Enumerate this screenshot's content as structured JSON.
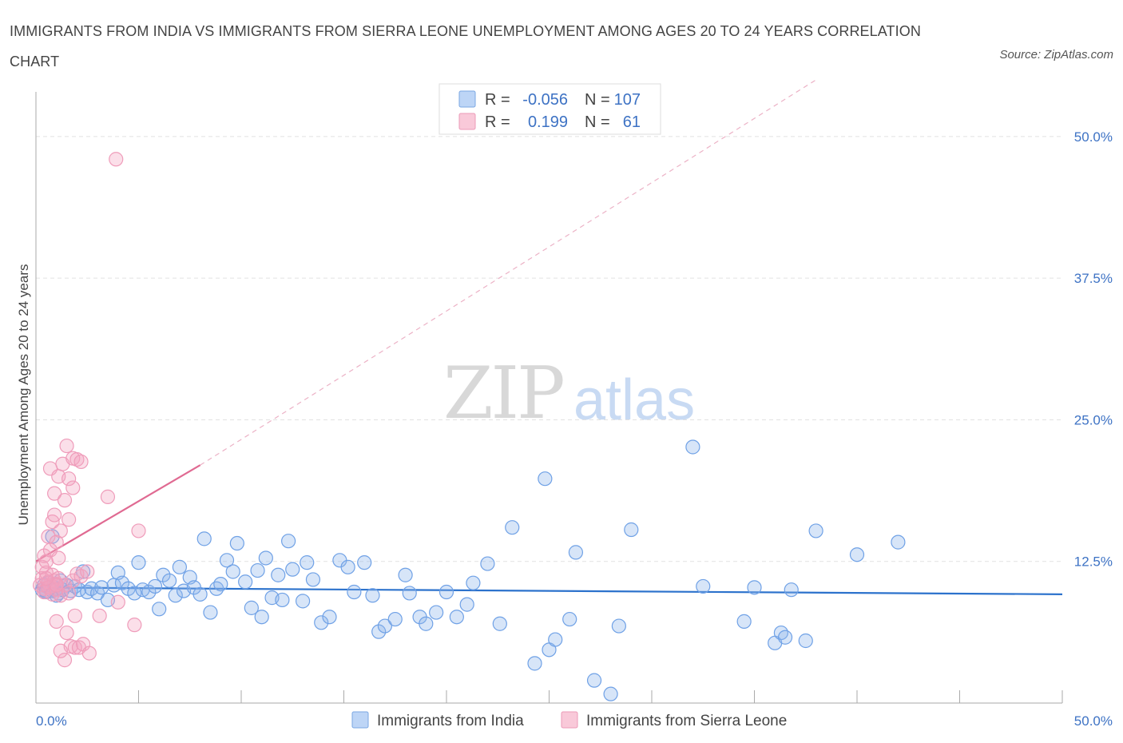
{
  "chart_data": {
    "type": "scatter",
    "title": "IMMIGRANTS FROM INDIA VS IMMIGRANTS FROM SIERRA LEONE UNEMPLOYMENT AMONG AGES 20 TO 24 YEARS CORRELATION CHART",
    "source": "Source: ZipAtlas.com",
    "ylabel": "Unemployment Among Ages 20 to 24 years",
    "xlim": [
      0,
      50
    ],
    "ylim": [
      0,
      55
    ],
    "y_ticks": [
      12.5,
      25.0,
      37.5,
      50.0
    ],
    "y_tick_labels": [
      "12.5%",
      "25.0%",
      "37.5%",
      "50.0%"
    ],
    "x_tick_labels": [
      "0.0%",
      "50.0%"
    ],
    "grid": true,
    "watermark": "ZIPatlas",
    "legend": {
      "position": "top-center",
      "entries": [
        {
          "r_label": "R =",
          "r_value": "-0.056",
          "n_label": "N =",
          "n_value": "107"
        },
        {
          "r_label": "R =",
          "r_value": "0.199",
          "n_label": "N =",
          "n_value": "61"
        }
      ]
    },
    "series": [
      {
        "name": "Immigrants from India",
        "color": "#6fa1e6",
        "trend_color": "#2c72cc",
        "trend": {
          "x": [
            0,
            50
          ],
          "y": [
            10.2,
            9.6
          ]
        },
        "points": [
          [
            0.3,
            10.0
          ],
          [
            0.4,
            10.4
          ],
          [
            0.5,
            9.8
          ],
          [
            0.6,
            10.6
          ],
          [
            0.7,
            10.2
          ],
          [
            0.8,
            9.9
          ],
          [
            0.9,
            10.5
          ],
          [
            1.0,
            10.1
          ],
          [
            1.1,
            9.7
          ],
          [
            1.2,
            10.8
          ],
          [
            0.5,
            9.9
          ],
          [
            0.8,
            10.3
          ],
          [
            1.0,
            9.5
          ],
          [
            1.3,
            10.0
          ],
          [
            1.5,
            10.4
          ],
          [
            1.7,
            9.9
          ],
          [
            1.9,
            10.3
          ],
          [
            2.1,
            10.0
          ],
          [
            2.3,
            11.6
          ],
          [
            2.5,
            9.8
          ],
          [
            2.7,
            10.1
          ],
          [
            3.0,
            9.7
          ],
          [
            3.2,
            10.2
          ],
          [
            3.5,
            9.1
          ],
          [
            3.8,
            10.4
          ],
          [
            4.0,
            11.5
          ],
          [
            4.2,
            10.6
          ],
          [
            4.5,
            10.1
          ],
          [
            4.8,
            9.7
          ],
          [
            5.0,
            12.4
          ],
          [
            5.2,
            10.0
          ],
          [
            5.5,
            9.8
          ],
          [
            5.8,
            10.3
          ],
          [
            6.0,
            8.3
          ],
          [
            6.2,
            11.3
          ],
          [
            6.5,
            10.8
          ],
          [
            6.8,
            9.5
          ],
          [
            7.0,
            12.0
          ],
          [
            7.2,
            9.9
          ],
          [
            7.5,
            11.1
          ],
          [
            7.7,
            10.2
          ],
          [
            8.0,
            9.6
          ],
          [
            8.2,
            14.5
          ],
          [
            8.5,
            8.0
          ],
          [
            8.8,
            10.1
          ],
          [
            9.0,
            10.5
          ],
          [
            9.3,
            12.6
          ],
          [
            9.6,
            11.6
          ],
          [
            9.8,
            14.1
          ],
          [
            10.2,
            10.7
          ],
          [
            10.5,
            8.4
          ],
          [
            10.8,
            11.7
          ],
          [
            11.0,
            7.6
          ],
          [
            11.2,
            12.8
          ],
          [
            11.5,
            9.3
          ],
          [
            11.8,
            11.3
          ],
          [
            12.0,
            9.1
          ],
          [
            12.3,
            14.3
          ],
          [
            12.5,
            11.8
          ],
          [
            13.0,
            9.0
          ],
          [
            13.2,
            12.4
          ],
          [
            13.5,
            10.9
          ],
          [
            13.9,
            7.1
          ],
          [
            14.3,
            7.6
          ],
          [
            14.8,
            12.6
          ],
          [
            15.2,
            12.0
          ],
          [
            15.5,
            9.8
          ],
          [
            16.0,
            12.4
          ],
          [
            16.4,
            9.5
          ],
          [
            16.7,
            6.3
          ],
          [
            17.0,
            6.8
          ],
          [
            17.5,
            7.4
          ],
          [
            18.0,
            11.3
          ],
          [
            18.2,
            9.7
          ],
          [
            18.7,
            7.6
          ],
          [
            19.0,
            7.0
          ],
          [
            19.5,
            8.0
          ],
          [
            20.0,
            9.8
          ],
          [
            20.5,
            7.6
          ],
          [
            21.0,
            8.7
          ],
          [
            21.3,
            10.6
          ],
          [
            22.0,
            12.3
          ],
          [
            22.6,
            7.0
          ],
          [
            23.2,
            15.5
          ],
          [
            24.3,
            3.5
          ],
          [
            25.0,
            4.7
          ],
          [
            25.3,
            5.6
          ],
          [
            24.8,
            19.8
          ],
          [
            26.3,
            13.3
          ],
          [
            26.0,
            7.4
          ],
          [
            27.2,
            2.0
          ],
          [
            28.0,
            0.8
          ],
          [
            28.4,
            6.8
          ],
          [
            29.0,
            15.3
          ],
          [
            32.0,
            22.6
          ],
          [
            34.5,
            7.2
          ],
          [
            35.0,
            10.2
          ],
          [
            36.0,
            5.3
          ],
          [
            36.3,
            6.2
          ],
          [
            36.5,
            5.8
          ],
          [
            36.8,
            10.0
          ],
          [
            37.5,
            5.5
          ],
          [
            38.0,
            15.2
          ],
          [
            40.0,
            13.1
          ],
          [
            42.0,
            14.2
          ],
          [
            32.5,
            10.3
          ],
          [
            0.8,
            14.7
          ]
        ]
      },
      {
        "name": "Immigrants from Sierra Leone",
        "color": "#f4a3bf",
        "trend_color": "#e06a92",
        "trend": {
          "x": [
            0,
            8
          ],
          "y": [
            12.5,
            21.0
          ]
        },
        "trend_extension": {
          "x": [
            8,
            38
          ],
          "y": [
            21.0,
            55.0
          ]
        },
        "points": [
          [
            0.2,
            10.4
          ],
          [
            0.3,
            11.0
          ],
          [
            0.4,
            10.1
          ],
          [
            0.5,
            11.5
          ],
          [
            0.6,
            10.7
          ],
          [
            0.7,
            10.3
          ],
          [
            0.8,
            11.3
          ],
          [
            0.9,
            10.8
          ],
          [
            1.0,
            10.5
          ],
          [
            1.1,
            11.0
          ],
          [
            0.3,
            12.0
          ],
          [
            0.4,
            13.0
          ],
          [
            0.5,
            12.5
          ],
          [
            0.6,
            14.7
          ],
          [
            0.7,
            13.5
          ],
          [
            0.8,
            16.0
          ],
          [
            0.9,
            16.6
          ],
          [
            1.0,
            14.2
          ],
          [
            1.1,
            12.8
          ],
          [
            1.2,
            15.2
          ],
          [
            0.7,
            20.7
          ],
          [
            0.9,
            18.5
          ],
          [
            1.1,
            20.0
          ],
          [
            1.3,
            21.1
          ],
          [
            1.5,
            22.7
          ],
          [
            1.6,
            19.8
          ],
          [
            1.8,
            21.6
          ],
          [
            2.0,
            21.5
          ],
          [
            2.2,
            21.3
          ],
          [
            1.4,
            17.9
          ],
          [
            1.6,
            16.2
          ],
          [
            1.8,
            19.0
          ],
          [
            0.4,
            9.8
          ],
          [
            0.6,
            10.2
          ],
          [
            0.8,
            9.6
          ],
          [
            1.0,
            10.0
          ],
          [
            1.2,
            9.5
          ],
          [
            1.4,
            10.4
          ],
          [
            1.6,
            9.7
          ],
          [
            1.8,
            10.8
          ],
          [
            2.0,
            11.4
          ],
          [
            2.2,
            11.2
          ],
          [
            1.5,
            6.2
          ],
          [
            1.7,
            5.0
          ],
          [
            1.9,
            4.9
          ],
          [
            2.1,
            4.9
          ],
          [
            2.3,
            5.2
          ],
          [
            1.4,
            3.8
          ],
          [
            1.2,
            4.6
          ],
          [
            1.0,
            7.2
          ],
          [
            1.9,
            7.7
          ],
          [
            2.6,
            4.4
          ],
          [
            3.1,
            7.7
          ],
          [
            3.5,
            18.2
          ],
          [
            4.0,
            8.9
          ],
          [
            4.8,
            6.9
          ],
          [
            5.0,
            15.2
          ],
          [
            3.9,
            48.0
          ],
          [
            2.5,
            11.6
          ],
          [
            1.0,
            10.4
          ],
          [
            0.5,
            11.0
          ]
        ]
      }
    ]
  }
}
